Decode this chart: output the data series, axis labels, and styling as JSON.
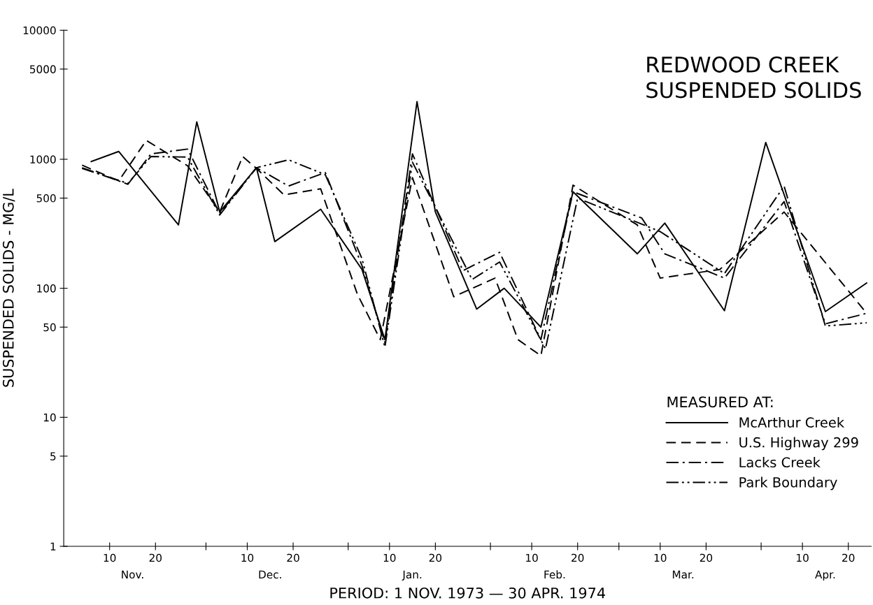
{
  "chart_data": {
    "type": "line",
    "title": "REDWOOD CREEK\nSUSPENDED SOLIDS",
    "xlabel": "PERIOD: 1 NOV. 1973 — 30 APR. 1974",
    "ylabel": "SUSPENDED SOLIDS - MG/L",
    "legend_title": "MEASURED AT:",
    "legend": "right",
    "grid": false,
    "marker": "none",
    "log": "y",
    "ylim": [
      1,
      10000
    ],
    "yticks": [
      1,
      5,
      10,
      50,
      100,
      500,
      1000,
      5000,
      10000
    ],
    "xlim": [
      "1973-10-31",
      "1974-04-25"
    ],
    "xticks": [
      {
        "value": "1973-11-10",
        "label": "10"
      },
      {
        "value": "1973-11-20",
        "label": "20"
      },
      {
        "value": "1973-12-01",
        "label": null
      },
      {
        "value": "1973-12-10",
        "label": "10"
      },
      {
        "value": "1973-12-20",
        "label": "20"
      },
      {
        "value": "1974-01-01",
        "label": null
      },
      {
        "value": "1974-01-10",
        "label": "10"
      },
      {
        "value": "1974-01-20",
        "label": "20"
      },
      {
        "value": "1974-02-01",
        "label": null
      },
      {
        "value": "1974-02-10",
        "label": "10"
      },
      {
        "value": "1974-02-20",
        "label": "20"
      },
      {
        "value": "1974-03-01",
        "label": null
      },
      {
        "value": "1974-03-10",
        "label": "10"
      },
      {
        "value": "1974-03-20",
        "label": "20"
      },
      {
        "value": "1974-04-01",
        "label": null
      },
      {
        "value": "1974-04-10",
        "label": "10"
      },
      {
        "value": "1974-04-20",
        "label": "20"
      }
    ],
    "annotations": [
      "Nov.",
      "Dec.",
      "Jan.",
      "Feb.",
      "Mar.",
      "Apr."
    ],
    "series": [
      {
        "name": "McArthur Creek",
        "color": "#000000",
        "line_style": "solid",
        "x": [
          "1973-11-06",
          "1973-11-12",
          "1973-11-25",
          "1973-11-29",
          "1973-12-04",
          "1973-12-12",
          "1973-12-16",
          "1973-12-26",
          "1974-01-04",
          "1974-01-09",
          "1974-01-16",
          "1974-01-20",
          "1974-01-29",
          "1974-02-04",
          "1974-02-12",
          "1974-02-19",
          "1974-03-05",
          "1974-03-11",
          "1974-03-24",
          "1974-04-02",
          "1974-04-15",
          "1974-04-24"
        ],
        "values": [
          960,
          1150,
          310,
          1950,
          390,
          860,
          230,
          410,
          140,
          40,
          2800,
          390,
          69,
          100,
          50,
          560,
          185,
          320,
          67,
          1350,
          66,
          110
        ]
      },
      {
        "name": "U.S. Highway 299",
        "color": "#000000",
        "line_style": "dashed",
        "x": [
          "1973-11-04",
          "1973-11-12",
          "1973-11-18",
          "1973-11-27",
          "1973-12-04",
          "1973-12-09",
          "1973-12-12",
          "1973-12-18",
          "1973-12-26",
          "1974-01-03",
          "1974-01-08",
          "1974-01-15",
          "1974-01-24",
          "1974-02-02",
          "1974-02-07",
          "1974-02-12",
          "1974-02-19",
          "1974-03-05",
          "1974-03-10",
          "1974-03-23",
          "1974-04-06",
          "1974-04-24"
        ],
        "values": [
          900,
          680,
          1400,
          890,
          390,
          1050,
          850,
          530,
          590,
          90,
          40,
          720,
          86,
          120,
          40,
          30,
          630,
          310,
          120,
          140,
          390,
          64
        ]
      },
      {
        "name": "Lacks Creek",
        "color": "#000000",
        "line_style": "dashdot",
        "x": [
          "1973-11-04",
          "1973-11-14",
          "1973-11-19",
          "1973-11-27",
          "1973-12-04",
          "1973-12-12",
          "1973-12-19",
          "1973-12-27",
          "1974-01-04",
          "1974-01-09",
          "1974-01-15",
          "1974-01-26",
          "1974-02-03",
          "1974-02-12",
          "1974-02-19",
          "1974-03-06",
          "1974-03-11",
          "1974-03-24",
          "1974-04-06",
          "1974-04-15",
          "1974-04-24"
        ],
        "values": [
          860,
          640,
          1100,
          1200,
          380,
          860,
          620,
          790,
          150,
          38,
          1100,
          137,
          190,
          40,
          560,
          350,
          185,
          120,
          470,
          53,
          64
        ]
      },
      {
        "name": "Park Boundary",
        "color": "#000000",
        "line_style": "dashdotdot",
        "x": [
          "1973-11-04",
          "1973-11-14",
          "1973-11-19",
          "1973-11-27",
          "1973-12-04",
          "1973-12-12",
          "1973-12-19",
          "1973-12-27",
          "1974-01-04",
          "1974-01-09",
          "1974-01-15",
          "1974-01-28",
          "1974-02-03",
          "1974-02-13",
          "1974-02-20",
          "1974-03-10",
          "1974-03-24",
          "1974-04-06",
          "1974-04-15",
          "1974-04-24"
        ],
        "values": [
          850,
          650,
          1050,
          1040,
          370,
          860,
          990,
          760,
          170,
          35,
          950,
          117,
          160,
          34,
          500,
          275,
          130,
          620,
          51,
          54
        ]
      }
    ]
  }
}
